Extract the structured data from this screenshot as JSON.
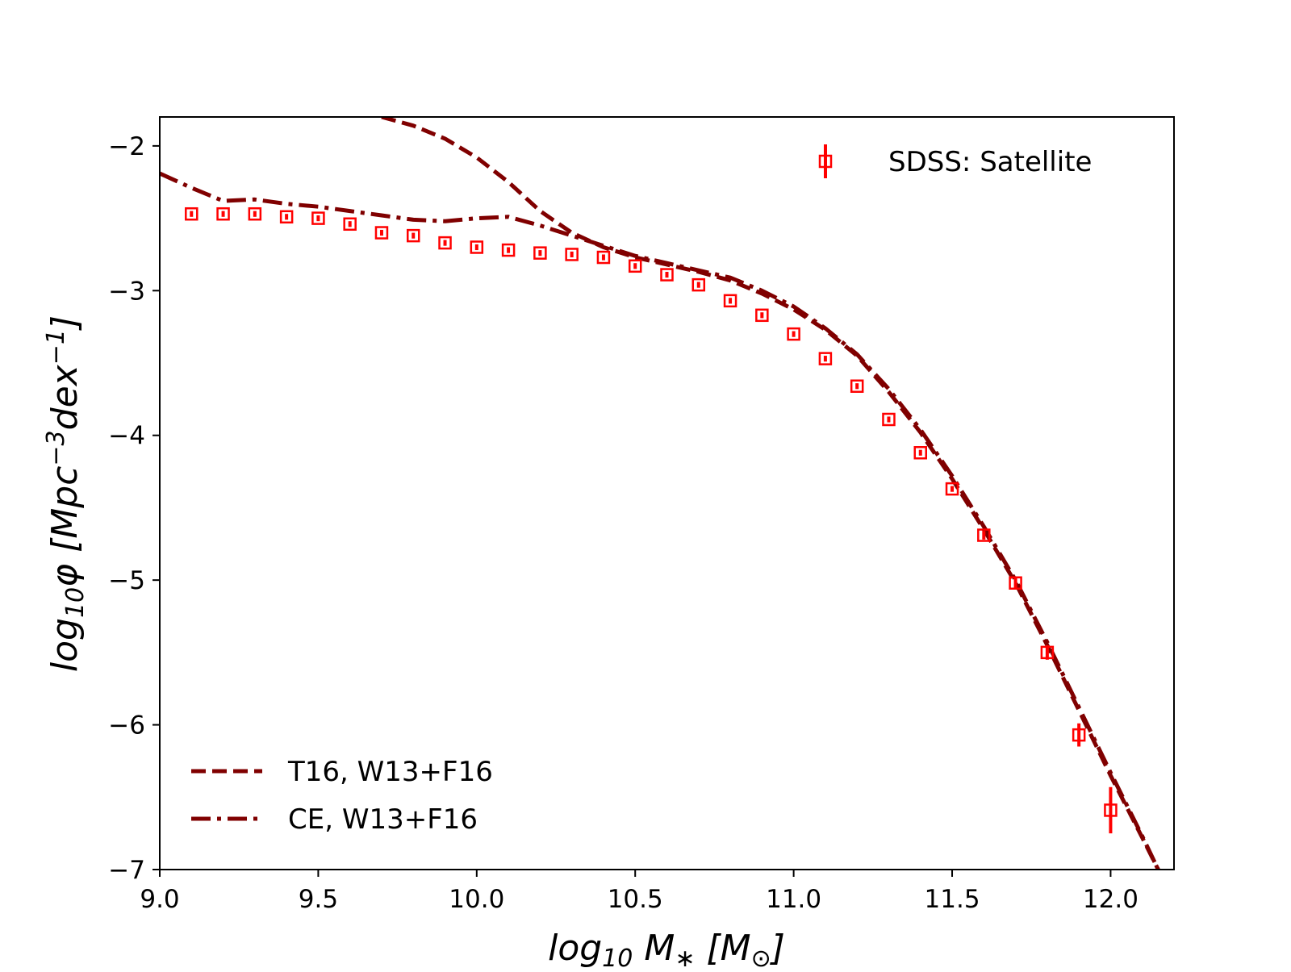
{
  "chart_data": {
    "type": "line",
    "title": "",
    "xlabel": "log10 M* [M⊙]",
    "ylabel": "log10φ [Mpc⁻³dex⁻¹]",
    "xlabel_parts": {
      "main": "log",
      "sub": "10",
      "var": " M",
      "var_sub": "∗",
      "bracket": " [M",
      "bracket_sub": "⊙",
      "close": "]"
    },
    "ylabel_parts": {
      "main": "log",
      "sub": "10",
      "var": "φ [Mpc",
      "sup1": "−3",
      "mid": "dex",
      "sup2": "−1",
      "close": "]"
    },
    "xlim": [
      9.0,
      12.2
    ],
    "ylim": [
      -7.0,
      -1.8
    ],
    "xticks": [
      9.0,
      9.5,
      10.0,
      10.5,
      11.0,
      11.5,
      12.0
    ],
    "xtick_labels": [
      "9.0",
      "9.5",
      "10.0",
      "10.5",
      "11.0",
      "11.5",
      "12.0"
    ],
    "yticks": [
      -7,
      -6,
      -5,
      -4,
      -3,
      -2
    ],
    "ytick_labels": [
      "−7",
      "−6",
      "−5",
      "−4",
      "−3",
      "−2"
    ],
    "grid": false,
    "colors": {
      "data": "#ff0000",
      "model": "#800000"
    },
    "series": [
      {
        "name": "SDSS: Satellite",
        "style": "markers-errorbars",
        "legend_position": "top-right",
        "x": [
          9.1,
          9.2,
          9.3,
          9.4,
          9.5,
          9.6,
          9.7,
          9.8,
          9.9,
          10.0,
          10.1,
          10.2,
          10.3,
          10.4,
          10.5,
          10.6,
          10.7,
          10.8,
          10.9,
          11.0,
          11.1,
          11.2,
          11.3,
          11.4,
          11.5,
          11.6,
          11.7,
          11.8,
          11.9,
          12.0
        ],
        "y": [
          -2.47,
          -2.47,
          -2.47,
          -2.49,
          -2.5,
          -2.54,
          -2.6,
          -2.62,
          -2.67,
          -2.7,
          -2.72,
          -2.74,
          -2.75,
          -2.77,
          -2.83,
          -2.89,
          -2.96,
          -3.07,
          -3.17,
          -3.3,
          -3.47,
          -3.66,
          -3.89,
          -4.12,
          -4.37,
          -4.69,
          -5.02,
          -5.5,
          -6.07,
          -6.59
        ],
        "yerr": [
          0.02,
          0.02,
          0.02,
          0.02,
          0.02,
          0.02,
          0.02,
          0.02,
          0.02,
          0.02,
          0.02,
          0.02,
          0.02,
          0.02,
          0.02,
          0.02,
          0.02,
          0.02,
          0.02,
          0.02,
          0.02,
          0.02,
          0.02,
          0.02,
          0.02,
          0.03,
          0.04,
          0.05,
          0.08,
          0.16
        ]
      },
      {
        "name": "T16, W13+F16",
        "style": "dashed",
        "legend_position": "bottom-left",
        "x": [
          9.7,
          9.8,
          9.9,
          10.0,
          10.1,
          10.2,
          10.3,
          10.4,
          10.5,
          10.6,
          10.7,
          10.8,
          10.9,
          11.0,
          11.1,
          11.2,
          11.3,
          11.4,
          11.5,
          11.6,
          11.7,
          11.8,
          11.9,
          12.0,
          12.1,
          12.15
        ],
        "y": [
          -1.8,
          -1.86,
          -1.95,
          -2.08,
          -2.25,
          -2.45,
          -2.6,
          -2.7,
          -2.77,
          -2.82,
          -2.87,
          -2.93,
          -3.02,
          -3.13,
          -3.27,
          -3.45,
          -3.7,
          -3.98,
          -4.3,
          -4.65,
          -5.02,
          -5.45,
          -5.9,
          -6.35,
          -6.78,
          -7.0
        ]
      },
      {
        "name": "CE, W13+F16",
        "style": "dashdot",
        "legend_position": "bottom-left",
        "x": [
          9.0,
          9.1,
          9.2,
          9.3,
          9.4,
          9.5,
          9.6,
          9.7,
          9.8,
          9.9,
          10.0,
          10.1,
          10.2,
          10.3,
          10.4,
          10.5,
          10.6,
          10.7,
          10.8,
          10.9,
          11.0,
          11.1,
          11.2,
          11.3,
          11.4,
          11.5,
          11.6,
          11.7,
          11.8,
          11.9,
          12.0,
          12.1,
          12.15
        ],
        "y": [
          -2.19,
          -2.29,
          -2.38,
          -2.37,
          -2.4,
          -2.42,
          -2.45,
          -2.48,
          -2.51,
          -2.52,
          -2.5,
          -2.49,
          -2.55,
          -2.62,
          -2.69,
          -2.76,
          -2.81,
          -2.86,
          -2.91,
          -3.0,
          -3.11,
          -3.26,
          -3.44,
          -3.68,
          -3.96,
          -4.28,
          -4.63,
          -5.0,
          -5.43,
          -5.88,
          -6.33,
          -6.77,
          -7.0
        ]
      }
    ]
  }
}
